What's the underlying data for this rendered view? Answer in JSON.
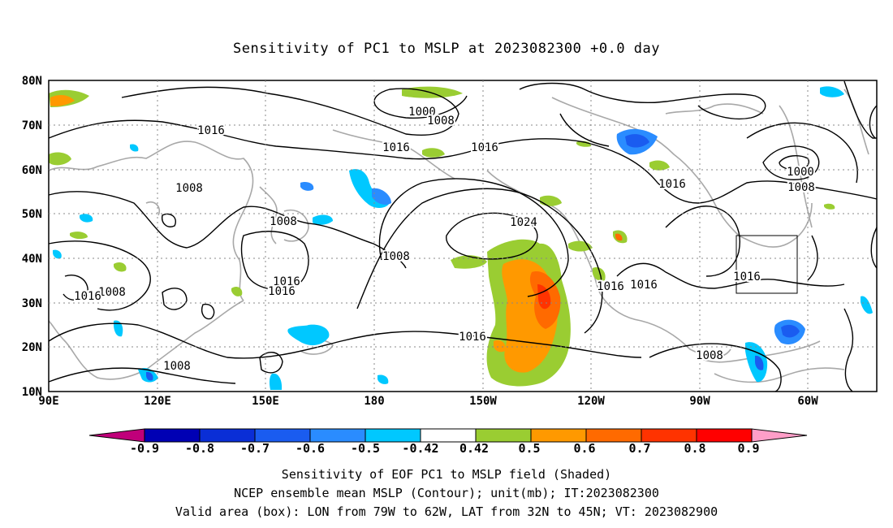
{
  "title": "Sensitivity of PC1 to MSLP at 2023082300 +0.0 day",
  "map": {
    "lat_ticks": [
      "80N",
      "70N",
      "60N",
      "50N",
      "40N",
      "30N",
      "20N",
      "10N"
    ],
    "lon_ticks": [
      "90E",
      "120E",
      "150E",
      "180",
      "150W",
      "120W",
      "90W",
      "60W"
    ],
    "contour_labels": [
      "1000",
      "1008",
      "1016",
      "1016",
      "1016",
      "1008",
      "1008",
      "1016",
      "1016",
      "1008",
      "1024",
      "1008",
      "1016",
      "1016",
      "1016",
      "1016",
      "1008",
      "1008",
      "1016",
      "1008",
      "1008",
      "1000",
      "1008",
      "1016",
      "1008"
    ],
    "valid_box": {
      "lon": [
        "79W",
        "62W"
      ],
      "lat": [
        "32N",
        "45N"
      ]
    }
  },
  "colorbar": {
    "labels": [
      "-0.9",
      "-0.8",
      "-0.7",
      "-0.6",
      "-0.5",
      "-0.42",
      "0.42",
      "0.5",
      "0.6",
      "0.7",
      "0.8",
      "0.9"
    ],
    "colors": [
      "#c0007a",
      "#0000b4",
      "#0a2ed6",
      "#1a5cf0",
      "#2a8cff",
      "#00c8ff",
      "#ffffff",
      "#9acd32",
      "#ff9900",
      "#ff6a00",
      "#ff3300",
      "#ff0000",
      "#ff9ec8"
    ]
  },
  "footnotes": {
    "line1": "Sensitivity of EOF PC1 to MSLP field (Shaded)",
    "line2": "NCEP ensemble mean MSLP (Contour); unit(mb); IT:2023082300",
    "line3": "Valid area (box): LON from 79W to 62W, LAT from 32N to 45N; VT: 2023082900"
  }
}
